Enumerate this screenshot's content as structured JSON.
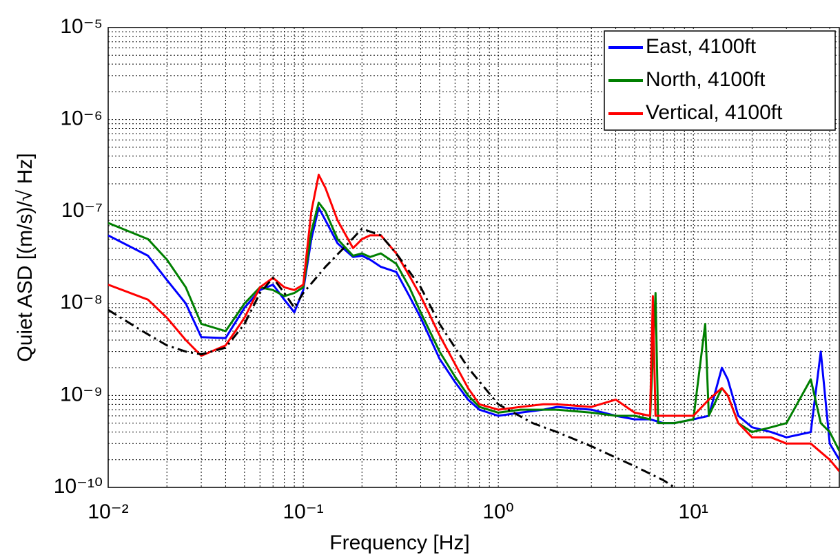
{
  "chart_data": {
    "type": "line",
    "xlabel": "Frequency [Hz]",
    "ylabel": "Quiet ASD [(m/s)/√ Hz]",
    "xscale": "log",
    "yscale": "log",
    "grid": true,
    "minor_grid": true,
    "legend": "upper right",
    "xlim": [
      0.01,
      56
    ],
    "ylim": [
      1e-10,
      1e-05
    ],
    "xticks": [
      {
        "value": 0.01,
        "label": "10⁻²"
      },
      {
        "value": 0.1,
        "label": "10⁻¹"
      },
      {
        "value": 1,
        "label": "10⁰"
      },
      {
        "value": 10,
        "label": "10¹"
      }
    ],
    "yticks": [
      {
        "value": 1e-10,
        "label": "10⁻¹⁰"
      },
      {
        "value": 1e-09,
        "label": "10⁻⁹"
      },
      {
        "value": 1e-08,
        "label": "10⁻⁸"
      },
      {
        "value": 1e-07,
        "label": "10⁻⁷"
      },
      {
        "value": 1e-06,
        "label": "10⁻⁶"
      },
      {
        "value": 1e-05,
        "label": "10⁻⁵"
      }
    ],
    "series": [
      {
        "name": "East, 4100ft",
        "color": "#0000ff",
        "style": "solid",
        "x": [
          0.01,
          0.016,
          0.02,
          0.025,
          0.03,
          0.04,
          0.05,
          0.06,
          0.07,
          0.08,
          0.09,
          0.1,
          0.11,
          0.12,
          0.13,
          0.15,
          0.18,
          0.2,
          0.22,
          0.25,
          0.3,
          0.35,
          0.4,
          0.5,
          0.6,
          0.7,
          0.8,
          1.0,
          1.3,
          1.7,
          2,
          3,
          4,
          5,
          6,
          7,
          8,
          10,
          12,
          14,
          15,
          17,
          20,
          25,
          30,
          40,
          45,
          50,
          56
        ],
        "values": [
          5.5e-08,
          3.3e-08,
          1.8e-08,
          1e-08,
          4.3e-09,
          4.2e-09,
          9e-09,
          1.4e-08,
          1.6e-08,
          1.1e-08,
          8e-09,
          1.4e-08,
          5e-08,
          1.1e-07,
          8e-08,
          4.5e-08,
          3.2e-08,
          3.3e-08,
          3e-08,
          2.5e-08,
          2.2e-08,
          1.2e-08,
          7e-09,
          2.5e-09,
          1.4e-09,
          9e-10,
          7e-10,
          6e-10,
          6.5e-10,
          7e-10,
          7.5e-10,
          7e-10,
          6e-10,
          5.5e-10,
          5.5e-10,
          5e-10,
          5e-10,
          5.5e-10,
          6e-10,
          2e-09,
          1.5e-09,
          6e-10,
          4.5e-10,
          4e-10,
          3.5e-10,
          4e-10,
          3e-09,
          3e-10,
          2e-10
        ]
      },
      {
        "name": "North, 4100ft",
        "color": "#007f00",
        "style": "solid",
        "x": [
          0.01,
          0.016,
          0.02,
          0.025,
          0.03,
          0.04,
          0.05,
          0.06,
          0.07,
          0.08,
          0.09,
          0.1,
          0.11,
          0.12,
          0.13,
          0.15,
          0.18,
          0.2,
          0.22,
          0.25,
          0.3,
          0.35,
          0.4,
          0.5,
          0.6,
          0.7,
          0.8,
          1.0,
          1.3,
          1.7,
          2,
          3,
          4,
          5,
          6,
          6.4,
          6.6,
          8,
          10,
          11.5,
          12,
          14,
          15,
          17,
          20,
          25,
          30,
          40,
          45,
          50,
          56
        ],
        "values": [
          7.5e-08,
          5e-08,
          3e-08,
          1.5e-08,
          6e-09,
          5e-09,
          1e-08,
          1.5e-08,
          1.4e-08,
          1.2e-08,
          1.3e-08,
          1.5e-08,
          6e-08,
          1.25e-07,
          1e-07,
          5e-08,
          3.3e-08,
          3.5e-08,
          3.2e-08,
          3.5e-08,
          2.7e-08,
          1.5e-08,
          8e-09,
          3e-09,
          1.6e-09,
          1e-09,
          7.5e-10,
          6.5e-10,
          7e-10,
          7e-10,
          7e-10,
          6.5e-10,
          6e-10,
          6e-10,
          5.5e-10,
          1.3e-08,
          5e-10,
          5e-10,
          5.5e-10,
          6e-09,
          6e-10,
          1.2e-09,
          1e-09,
          5e-10,
          4e-10,
          4.5e-10,
          5e-10,
          1.5e-09,
          5e-10,
          4e-10,
          2.5e-10
        ]
      },
      {
        "name": "Vertical, 4100ft",
        "color": "#ff0000",
        "style": "solid",
        "x": [
          0.01,
          0.016,
          0.02,
          0.025,
          0.03,
          0.04,
          0.05,
          0.06,
          0.07,
          0.08,
          0.09,
          0.1,
          0.11,
          0.12,
          0.13,
          0.15,
          0.18,
          0.2,
          0.22,
          0.25,
          0.3,
          0.35,
          0.4,
          0.5,
          0.6,
          0.7,
          0.8,
          1.0,
          1.3,
          1.7,
          2,
          3,
          4,
          5,
          6,
          6.2,
          6.4,
          8,
          10,
          12,
          14,
          15,
          17,
          20,
          25,
          30,
          40,
          50,
          56
        ],
        "values": [
          1.6e-08,
          1.1e-08,
          7e-09,
          4e-09,
          2.7e-09,
          3.5e-09,
          7e-09,
          1.5e-08,
          1.9e-08,
          1.5e-08,
          1.4e-08,
          1.6e-08,
          1e-07,
          2.5e-07,
          1.8e-07,
          8e-08,
          4e-08,
          5e-08,
          5.5e-08,
          5.5e-08,
          3.5e-08,
          2e-08,
          1.2e-08,
          4.5e-09,
          2.2e-09,
          1.2e-09,
          8e-10,
          7e-10,
          7.5e-10,
          8e-10,
          8e-10,
          7.5e-10,
          9e-10,
          6.5e-10,
          6e-10,
          1.2e-08,
          6e-10,
          6e-10,
          6e-10,
          9e-10,
          1.2e-09,
          1e-09,
          5e-10,
          3.5e-10,
          3.5e-10,
          3e-10,
          3e-10,
          2e-10,
          1.5e-10
        ]
      },
      {
        "color": "#000000",
        "style": "dashdot",
        "x": [
          0.01,
          0.015,
          0.02,
          0.025,
          0.03,
          0.04,
          0.05,
          0.06,
          0.07,
          0.08,
          0.09,
          0.1,
          0.13,
          0.17,
          0.2,
          0.25,
          0.3,
          0.4,
          0.5,
          0.7,
          1.0,
          1.5,
          2,
          3,
          5,
          7,
          8
        ],
        "values": [
          8.5e-09,
          5e-09,
          3.5e-09,
          3e-09,
          2.8e-09,
          3.3e-09,
          6e-09,
          1.3e-08,
          1.9e-08,
          1.3e-08,
          9e-09,
          1.3e-08,
          2.5e-08,
          4.5e-08,
          6.5e-08,
          5.5e-08,
          3.5e-08,
          1.5e-08,
          6e-09,
          2e-09,
          8e-10,
          5e-10,
          4e-10,
          2.8e-10,
          1.7e-10,
          1.2e-10,
          1e-10
        ]
      }
    ]
  }
}
